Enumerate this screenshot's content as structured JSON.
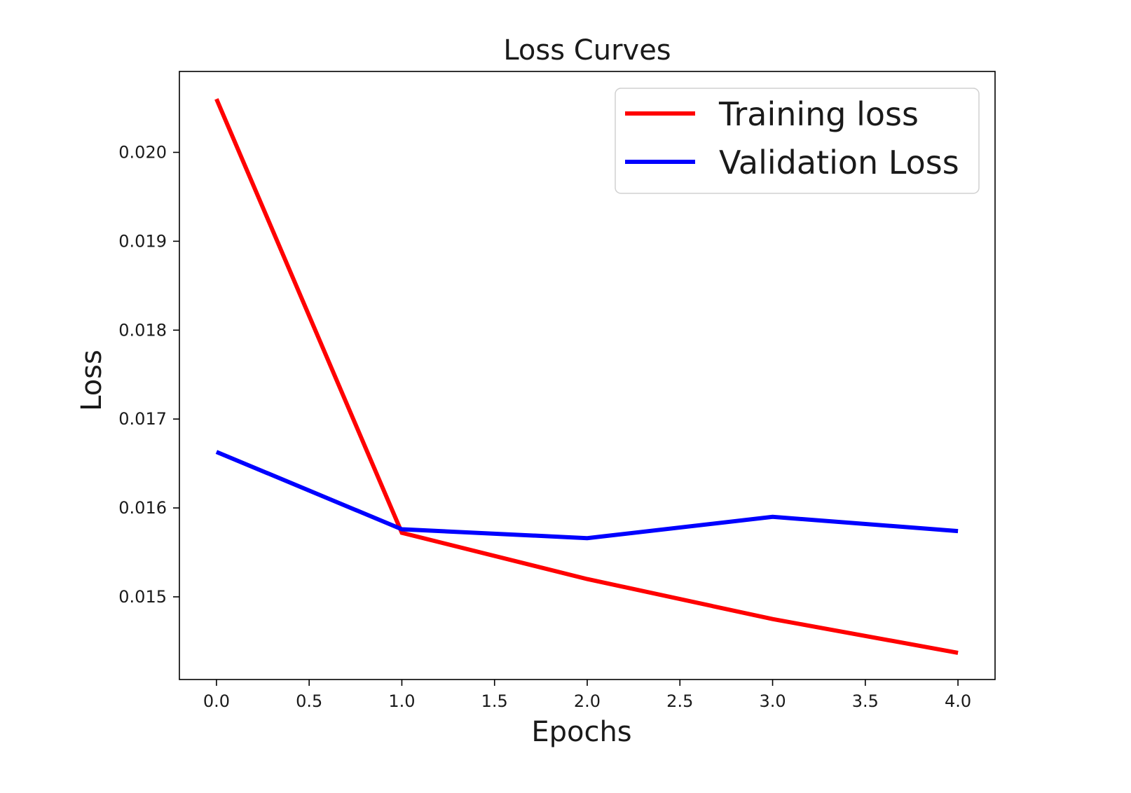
{
  "chart_data": {
    "type": "line",
    "title": "Loss Curves",
    "xlabel": "Epochs",
    "ylabel": "Loss",
    "x": [
      0,
      1,
      2,
      3,
      4
    ],
    "xlim": [
      -0.2,
      4.2
    ],
    "ylim": [
      0.01407,
      0.02091
    ],
    "xticks": [
      0.0,
      0.5,
      1.0,
      1.5,
      2.0,
      2.5,
      3.0,
      3.5,
      4.0
    ],
    "xtick_labels": [
      "0.0",
      "0.5",
      "1.0",
      "1.5",
      "2.0",
      "2.5",
      "3.0",
      "3.5",
      "4.0"
    ],
    "yticks": [
      0.015,
      0.016,
      0.017,
      0.018,
      0.019,
      0.02
    ],
    "ytick_labels": [
      "0.015",
      "0.016",
      "0.017",
      "0.018",
      "0.019",
      "0.020"
    ],
    "grid": false,
    "legend_position": "top-right",
    "series": [
      {
        "name": "Training loss",
        "color": "#ff0000",
        "values": [
          0.0206,
          0.01572,
          0.0152,
          0.01475,
          0.01437
        ]
      },
      {
        "name": "Validation Loss",
        "color": "#0000ff",
        "values": [
          0.01663,
          0.01576,
          0.01566,
          0.0159,
          0.01574
        ]
      }
    ]
  }
}
